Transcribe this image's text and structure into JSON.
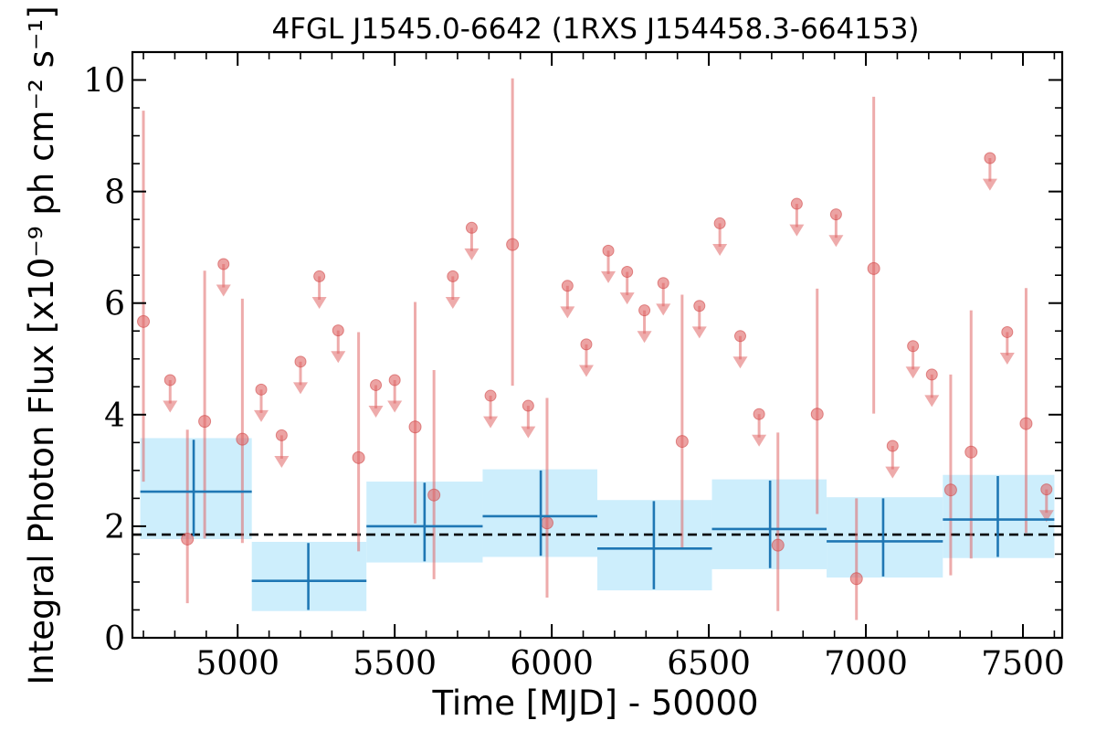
{
  "chart_data": {
    "type": "scatter",
    "title": "4FGL J1545.0-6642 (1RXS J154458.3-664153)",
    "xlabel": "Time [MJD] - 50000",
    "ylabel": "Integral Photon Flux [x10⁻⁹ ph cm⁻² s⁻¹]",
    "xlim": [
      4665,
      7625
    ],
    "ylim": [
      0,
      10.5
    ],
    "xticks": [
      5000,
      5500,
      6000,
      6500,
      7000,
      7500
    ],
    "yticks": [
      0,
      2,
      4,
      6,
      8,
      10
    ],
    "xtick_labels": [
      "5000",
      "5500",
      "6000",
      "6500",
      "7000",
      "7500"
    ],
    "ytick_labels": [
      "0",
      "2",
      "4",
      "6",
      "8",
      "10"
    ],
    "reference_line": {
      "y": 1.85,
      "style": "dashed",
      "color": "#000000"
    },
    "colors": {
      "short_bins": "#e06666",
      "long_bins": "#1f77b4",
      "long_bins_band": "#cdeefc"
    },
    "long_bins": [
      {
        "x": 4860,
        "xlo": 4690,
        "xhi": 5045,
        "y": 2.62,
        "ylo": 1.82,
        "yhi": 3.55,
        "band_lo": 1.77,
        "band_hi": 3.58
      },
      {
        "x": 5225,
        "xlo": 5045,
        "xhi": 5410,
        "y": 1.02,
        "ylo": 0.5,
        "yhi": 1.7,
        "band_lo": 0.48,
        "band_hi": 1.72
      },
      {
        "x": 5595,
        "xlo": 5410,
        "xhi": 5780,
        "y": 2.0,
        "ylo": 1.37,
        "yhi": 2.78,
        "band_lo": 1.35,
        "band_hi": 2.8
      },
      {
        "x": 5965,
        "xlo": 5780,
        "xhi": 6145,
        "y": 2.18,
        "ylo": 1.47,
        "yhi": 3.0,
        "band_lo": 1.45,
        "band_hi": 3.02
      },
      {
        "x": 6325,
        "xlo": 6145,
        "xhi": 6510,
        "y": 1.6,
        "ylo": 0.87,
        "yhi": 2.45,
        "band_lo": 0.85,
        "band_hi": 2.47
      },
      {
        "x": 6695,
        "xlo": 6510,
        "xhi": 6875,
        "y": 1.95,
        "ylo": 1.25,
        "yhi": 2.82,
        "band_lo": 1.23,
        "band_hi": 2.84
      },
      {
        "x": 7055,
        "xlo": 6875,
        "xhi": 7245,
        "y": 1.73,
        "ylo": 1.1,
        "yhi": 2.5,
        "band_lo": 1.08,
        "band_hi": 2.52
      },
      {
        "x": 7420,
        "xlo": 7245,
        "xhi": 7600,
        "y": 2.12,
        "ylo": 1.45,
        "yhi": 2.9,
        "band_lo": 1.43,
        "band_hi": 2.92
      }
    ],
    "short_bins_detections": [
      {
        "x": 4700,
        "y": 5.67,
        "ylo": 2.8,
        "yhi": 9.45
      },
      {
        "x": 4840,
        "y": 1.77,
        "ylo": 0.62,
        "yhi": 3.73
      },
      {
        "x": 4895,
        "y": 3.88,
        "ylo": 1.78,
        "yhi": 6.58
      },
      {
        "x": 5015,
        "y": 3.56,
        "ylo": 1.7,
        "yhi": 6.08
      },
      {
        "x": 5385,
        "y": 3.23,
        "ylo": 1.55,
        "yhi": 5.48
      },
      {
        "x": 5565,
        "y": 3.78,
        "ylo": 2.05,
        "yhi": 6.02
      },
      {
        "x": 5625,
        "y": 2.56,
        "ylo": 1.05,
        "yhi": 4.8
      },
      {
        "x": 5875,
        "y": 7.05,
        "ylo": 4.52,
        "yhi": 10.03
      },
      {
        "x": 5985,
        "y": 2.06,
        "ylo": 0.72,
        "yhi": 4.3
      },
      {
        "x": 6415,
        "y": 3.52,
        "ylo": 1.62,
        "yhi": 6.15
      },
      {
        "x": 6720,
        "y": 1.66,
        "ylo": 0.48,
        "yhi": 3.68
      },
      {
        "x": 6845,
        "y": 4.01,
        "ylo": 2.22,
        "yhi": 6.26
      },
      {
        "x": 6970,
        "y": 1.06,
        "ylo": 0.32,
        "yhi": 2.5
      },
      {
        "x": 7025,
        "y": 6.62,
        "ylo": 4.02,
        "yhi": 9.7
      },
      {
        "x": 7270,
        "y": 2.65,
        "ylo": 1.12,
        "yhi": 4.72
      },
      {
        "x": 7335,
        "y": 3.33,
        "ylo": 1.42,
        "yhi": 5.87
      },
      {
        "x": 7510,
        "y": 3.84,
        "ylo": 1.88,
        "yhi": 6.27
      }
    ],
    "short_bins_upper_limits": [
      {
        "x": 4785,
        "y": 4.62
      },
      {
        "x": 4955,
        "y": 6.7
      },
      {
        "x": 5075,
        "y": 4.45
      },
      {
        "x": 5140,
        "y": 3.63
      },
      {
        "x": 5200,
        "y": 4.95
      },
      {
        "x": 5260,
        "y": 6.48
      },
      {
        "x": 5320,
        "y": 5.51
      },
      {
        "x": 5440,
        "y": 4.53
      },
      {
        "x": 5500,
        "y": 4.62
      },
      {
        "x": 5685,
        "y": 6.48
      },
      {
        "x": 5745,
        "y": 7.35
      },
      {
        "x": 5805,
        "y": 4.34
      },
      {
        "x": 5925,
        "y": 4.16
      },
      {
        "x": 6050,
        "y": 6.31
      },
      {
        "x": 6110,
        "y": 5.26
      },
      {
        "x": 6180,
        "y": 6.94
      },
      {
        "x": 6240,
        "y": 6.56
      },
      {
        "x": 6295,
        "y": 5.87
      },
      {
        "x": 6355,
        "y": 6.36
      },
      {
        "x": 6470,
        "y": 5.95
      },
      {
        "x": 6535,
        "y": 7.43
      },
      {
        "x": 6600,
        "y": 5.41
      },
      {
        "x": 6660,
        "y": 4.01
      },
      {
        "x": 6780,
        "y": 7.78
      },
      {
        "x": 6905,
        "y": 7.59
      },
      {
        "x": 7085,
        "y": 3.44
      },
      {
        "x": 7150,
        "y": 5.23
      },
      {
        "x": 7210,
        "y": 4.72
      },
      {
        "x": 7395,
        "y": 8.6
      },
      {
        "x": 7450,
        "y": 5.48
      },
      {
        "x": 7575,
        "y": 2.66
      }
    ]
  }
}
